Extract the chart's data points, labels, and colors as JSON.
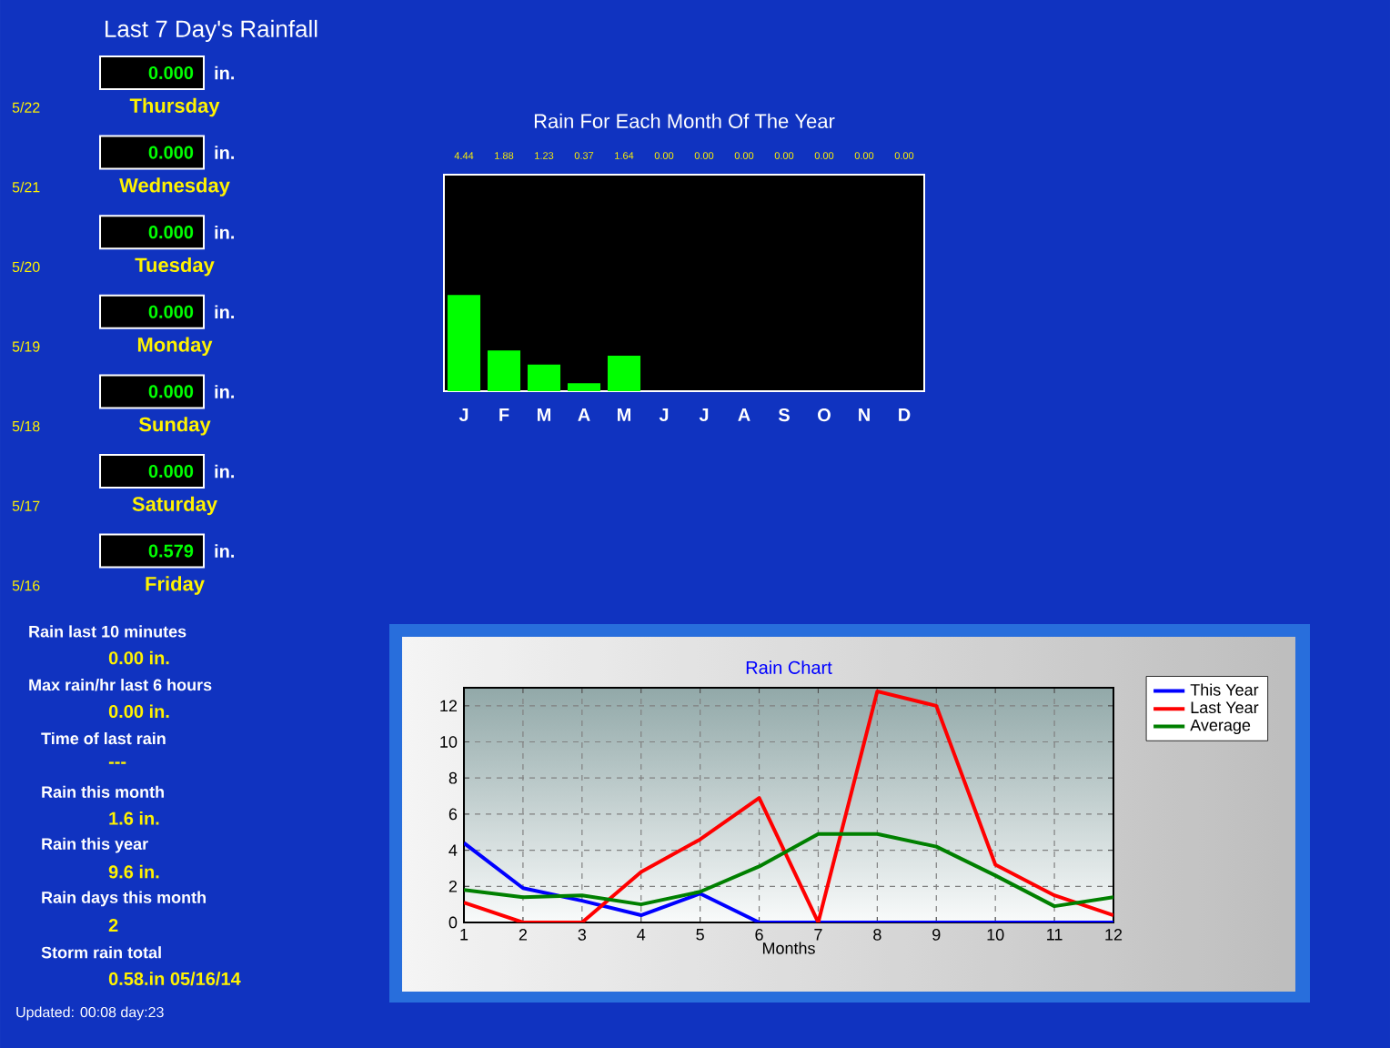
{
  "chart_data": [
    {
      "type": "other",
      "title": "Last 7 Day's Rainfall",
      "annotations": [
        "0.000",
        "in.",
        "5/22",
        "Thursday",
        "0.000",
        "in.",
        "5/21",
        "Wednesday",
        "0.000",
        "in.",
        "5/20",
        "Tuesday",
        "0.000",
        "in.",
        "5/19",
        "Monday",
        "0.000",
        "in.",
        "5/18",
        "Sunday",
        "0.000",
        "in.",
        "5/17",
        "Saturday",
        "0.579",
        "in.",
        "5/16",
        "Friday"
      ]
    },
    {
      "type": "bar",
      "title": "Rain For Each Month Of The Year",
      "categories": [
        "J",
        "F",
        "M",
        "A",
        "M",
        "J",
        "J",
        "A",
        "S",
        "O",
        "N",
        "D"
      ],
      "values": [
        4.44,
        1.88,
        1.23,
        0.37,
        1.64,
        0,
        0,
        0,
        0,
        0,
        0,
        0
      ],
      "value_labels": [
        "4.44",
        "1.88",
        "1.23",
        "0.37",
        "1.64",
        "0.00",
        "0.00",
        "0.00",
        "0.00",
        "0.00",
        "0.00",
        "0.00"
      ],
      "color": "#00ff00",
      "ylim": [
        0,
        10
      ],
      "tick_labels": "x"
    },
    {
      "type": "other",
      "annotations": [
        "Rain last 10 minutes",
        "0.00 in.",
        "Max rain/hr last 6 hours",
        "0.00 in.",
        "Time of last rain",
        "---",
        "Rain this month",
        "1.6 in.",
        "Rain this year",
        "9.6 in.",
        "Rain days this month",
        "2",
        "Storm rain total",
        "0.58.in 05/16/14",
        "Updated: 00:08 day:23"
      ]
    },
    {
      "type": "line",
      "title": "Rain Chart",
      "xlabel": "Months",
      "x": [
        1,
        2,
        3,
        4,
        5,
        6,
        7,
        8,
        9,
        10,
        11,
        12
      ],
      "series": [
        {
          "name": "This Year",
          "color": "#0000ff",
          "values": [
            4.4,
            1.9,
            1.2,
            0.4,
            1.6,
            0,
            0,
            0,
            0,
            0,
            0,
            0
          ]
        },
        {
          "name": "Last Year",
          "color": "#ff0000",
          "values": [
            1.1,
            0,
            0,
            2.8,
            4.6,
            6.9,
            0,
            12.8,
            12.0,
            3.2,
            1.5,
            0.4
          ]
        },
        {
          "name": "Average",
          "color": "#008000",
          "values": [
            1.8,
            1.4,
            1.5,
            1.0,
            1.7,
            3.1,
            4.9,
            4.9,
            4.2,
            2.6,
            0.9,
            1.4
          ]
        }
      ],
      "xlim": [
        1,
        12
      ],
      "ylim": [
        0,
        13
      ],
      "xticks": [
        1,
        2,
        3,
        4,
        5,
        6,
        7,
        8,
        9,
        10,
        11,
        12
      ],
      "yticks": [
        0,
        2,
        4,
        6,
        8,
        10,
        12
      ],
      "grid": true,
      "legend": "top right"
    }
  ]
}
